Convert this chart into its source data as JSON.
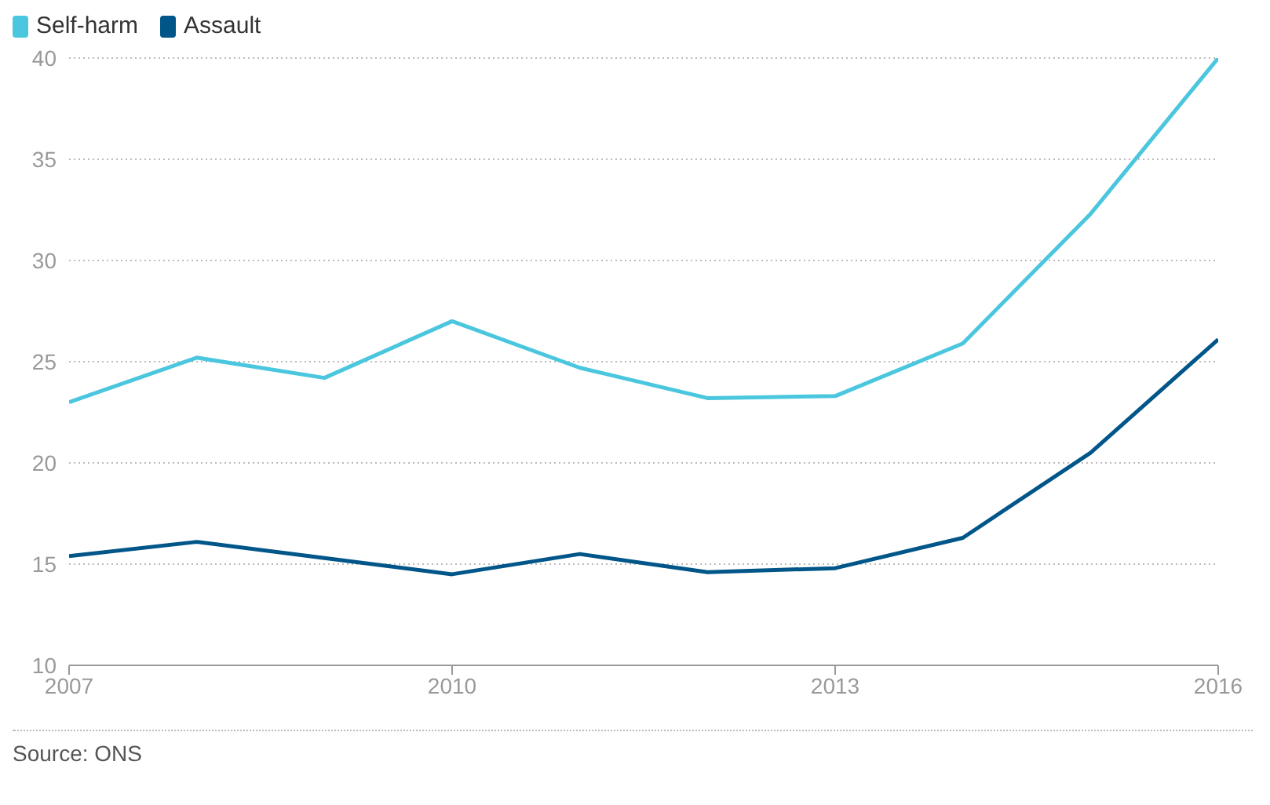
{
  "chart_data": {
    "type": "line",
    "x": [
      2007,
      2008,
      2009,
      2010,
      2011,
      2012,
      2013,
      2014,
      2015,
      2016
    ],
    "series": [
      {
        "name": "Self-harm",
        "color": "#4bc6df",
        "values": [
          23,
          25.2,
          24.2,
          27,
          24.7,
          23.2,
          23.3,
          25.9,
          32.3,
          40
        ]
      },
      {
        "name": "Assault",
        "color": "#005689",
        "values": [
          15.4,
          16.1,
          15.3,
          14.5,
          15.5,
          14.6,
          14.8,
          16.3,
          20.5,
          26.1
        ]
      }
    ],
    "xlim": [
      2007,
      2016
    ],
    "xticks": [
      2007,
      2010,
      2013,
      2016
    ],
    "ylim": [
      10,
      40
    ],
    "yticks": [
      10,
      15,
      20,
      25,
      30,
      35,
      40
    ],
    "grid": "y",
    "legend": "top left",
    "marker": "none",
    "line_style": "solid",
    "annotations": [
      "Source: ONS"
    ]
  }
}
